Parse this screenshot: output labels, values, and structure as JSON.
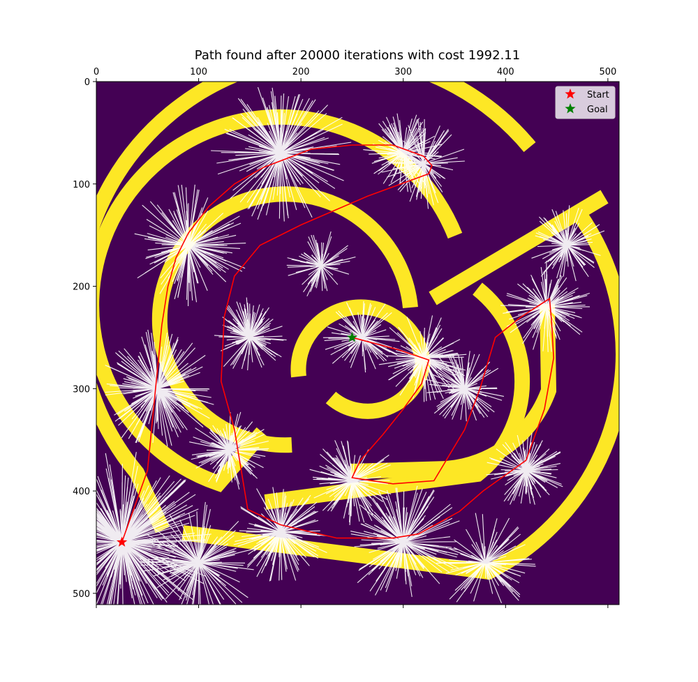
{
  "chart_data": {
    "type": "image_with_path",
    "title": "Path found after 20000 iterations with cost 1992.11",
    "xlim": [
      0,
      511
    ],
    "ylim": [
      511,
      0
    ],
    "x_ticks": [
      0,
      100,
      200,
      300,
      400,
      500
    ],
    "y_ticks": [
      0,
      100,
      200,
      300,
      400,
      500
    ],
    "grid": false,
    "legend": {
      "position": "top-right",
      "entries": [
        {
          "label": "Start",
          "color": "#ff0000",
          "marker": "star"
        },
        {
          "label": "Goal",
          "color": "#008000",
          "marker": "star"
        }
      ]
    },
    "colors": {
      "background": "#440154",
      "walls": "#fde725",
      "tree": "#ffffff",
      "path": "#ff0000"
    },
    "start": {
      "x": 25,
      "y": 450
    },
    "goal": {
      "x": 250,
      "y": 250
    },
    "path": [
      [
        25,
        450
      ],
      [
        50,
        380
      ],
      [
        64,
        238
      ],
      [
        70,
        200
      ],
      [
        78,
        172
      ],
      [
        90,
        148
      ],
      [
        110,
        122
      ],
      [
        135,
        100
      ],
      [
        163,
        84
      ],
      [
        210,
        66
      ],
      [
        250,
        62
      ],
      [
        290,
        62
      ],
      [
        320,
        73
      ],
      [
        328,
        82
      ],
      [
        325,
        90
      ],
      [
        265,
        112
      ],
      [
        200,
        140
      ],
      [
        160,
        160
      ],
      [
        135,
        190
      ],
      [
        125,
        230
      ],
      [
        122,
        293
      ],
      [
        135,
        340
      ],
      [
        148,
        418
      ],
      [
        180,
        433
      ],
      [
        235,
        446
      ],
      [
        290,
        446
      ],
      [
        315,
        442
      ],
      [
        355,
        420
      ],
      [
        378,
        400
      ],
      [
        420,
        370
      ],
      [
        438,
        320
      ],
      [
        447,
        270
      ],
      [
        445,
        235
      ],
      [
        443,
        212
      ],
      [
        415,
        230
      ],
      [
        390,
        250
      ],
      [
        375,
        300
      ],
      [
        360,
        340
      ],
      [
        330,
        390
      ],
      [
        290,
        393
      ],
      [
        250,
        387
      ],
      [
        258,
        370
      ],
      [
        280,
        345
      ],
      [
        300,
        320
      ],
      [
        318,
        295
      ],
      [
        325,
        272
      ],
      [
        295,
        262
      ],
      [
        250,
        250
      ]
    ]
  }
}
